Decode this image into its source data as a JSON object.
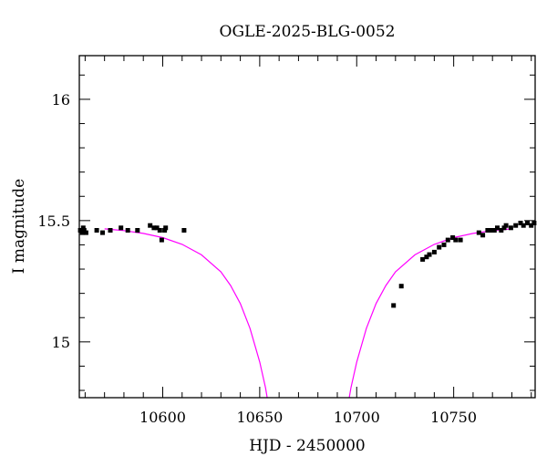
{
  "chart_data": {
    "type": "scatter",
    "title": "OGLE-2025-BLG-0052",
    "xlabel": "HJD - 2450000",
    "ylabel": "I magnitude",
    "xlim": [
      10557,
      10792
    ],
    "ylim": [
      16.18,
      14.77
    ],
    "y_inverted": true,
    "x_major_ticks": [
      10600,
      10650,
      10700,
      10750
    ],
    "x_minor_step": 10,
    "y_major_ticks": [
      15,
      15.5,
      16
    ],
    "y_minor_step": 0.1,
    "grid": false,
    "colors": {
      "points": "#000000",
      "model": "#ff00ff",
      "frame": "#000000"
    },
    "series": [
      {
        "kind": "points",
        "points": [
          [
            10557.5,
            15.46
          ],
          [
            10558.5,
            15.45
          ],
          [
            10559,
            15.47
          ],
          [
            10559.5,
            15.46
          ],
          [
            10560.5,
            15.45
          ],
          [
            10566,
            15.46
          ],
          [
            10569,
            15.45
          ],
          [
            10573,
            15.46
          ],
          [
            10578.5,
            15.47
          ],
          [
            10582,
            15.46
          ],
          [
            10587,
            15.46
          ],
          [
            10593.5,
            15.48
          ],
          [
            10595.5,
            15.47
          ],
          [
            10597,
            15.47
          ],
          [
            10598.5,
            15.46
          ],
          [
            10599.5,
            15.42
          ],
          [
            10601,
            15.46
          ],
          [
            10601.5,
            15.47
          ],
          [
            10611,
            15.46
          ],
          [
            10719,
            15.15
          ],
          [
            10723,
            15.23
          ],
          [
            10734,
            15.34
          ],
          [
            10736,
            15.35
          ],
          [
            10737.5,
            15.36
          ],
          [
            10740,
            15.37
          ],
          [
            10742.5,
            15.39
          ],
          [
            10745,
            15.4
          ],
          [
            10747,
            15.42
          ],
          [
            10749.5,
            15.43
          ],
          [
            10751,
            15.42
          ],
          [
            10753.5,
            15.42
          ],
          [
            10763,
            15.45
          ],
          [
            10765,
            15.44
          ],
          [
            10767.5,
            15.46
          ],
          [
            10769.5,
            15.46
          ],
          [
            10771,
            15.46
          ],
          [
            10772.5,
            15.47
          ],
          [
            10774.5,
            15.46
          ],
          [
            10776,
            15.47
          ],
          [
            10777,
            15.48
          ],
          [
            10779.5,
            15.47
          ],
          [
            10782,
            15.48
          ],
          [
            10784.5,
            15.49
          ],
          [
            10786,
            15.48
          ],
          [
            10788,
            15.49
          ],
          [
            10790,
            15.48
          ],
          [
            10791.5,
            15.49
          ]
        ]
      },
      {
        "kind": "model",
        "points": [
          [
            10557,
            15.472
          ],
          [
            10570,
            15.466
          ],
          [
            10580,
            15.459
          ],
          [
            10590,
            15.447
          ],
          [
            10600,
            15.43
          ],
          [
            10610,
            15.402
          ],
          [
            10620,
            15.359
          ],
          [
            10630,
            15.289
          ],
          [
            10635,
            15.232
          ],
          [
            10640,
            15.158
          ],
          [
            10645,
            15.056
          ],
          [
            10650,
            14.917
          ],
          [
            10653,
            14.81
          ],
          [
            10654.5,
            14.74
          ],
          [
            10695.5,
            14.74
          ],
          [
            10697,
            14.81
          ],
          [
            10700,
            14.917
          ],
          [
            10705,
            15.056
          ],
          [
            10710,
            15.158
          ],
          [
            10715,
            15.232
          ],
          [
            10720,
            15.289
          ],
          [
            10730,
            15.359
          ],
          [
            10740,
            15.402
          ],
          [
            10750,
            15.43
          ],
          [
            10760,
            15.447
          ],
          [
            10770,
            15.459
          ],
          [
            10780,
            15.466
          ],
          [
            10792,
            15.47
          ]
        ]
      }
    ]
  }
}
